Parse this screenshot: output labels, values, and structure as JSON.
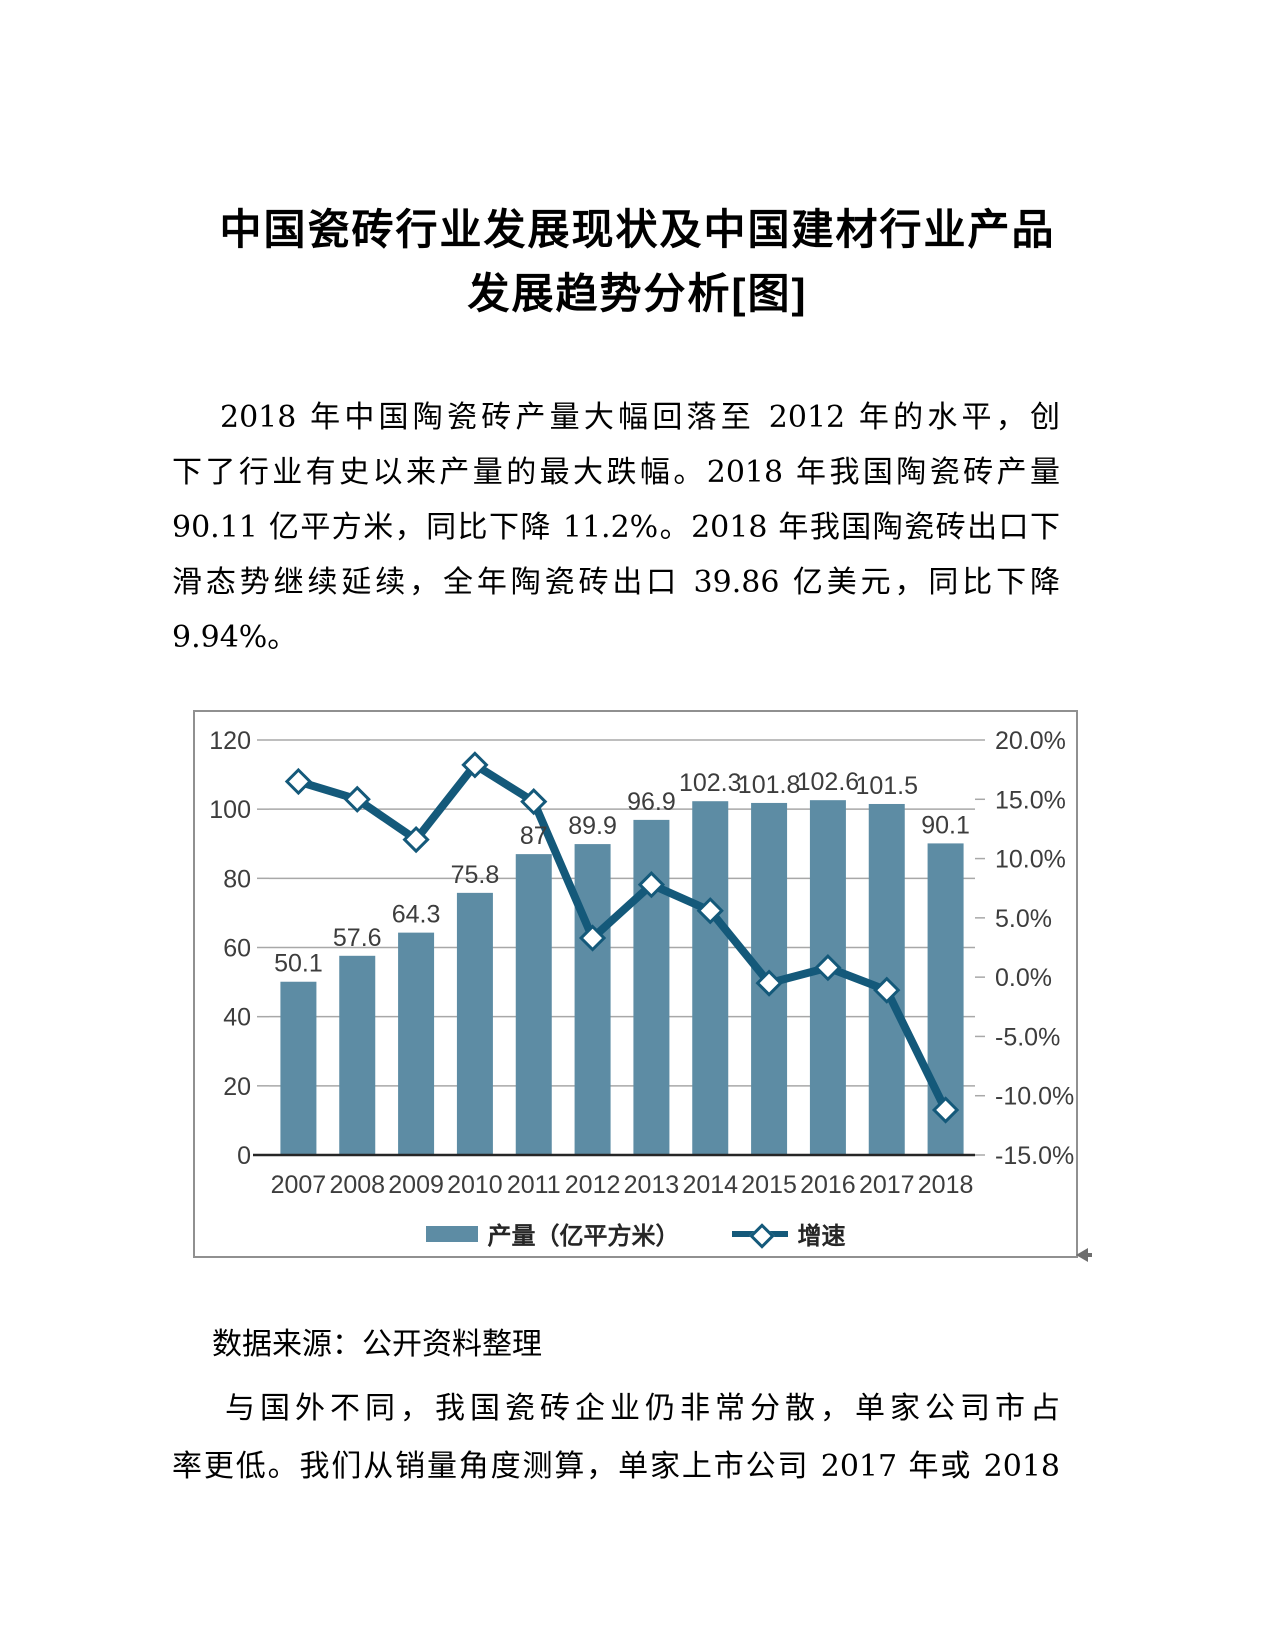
{
  "doc": {
    "title_lines": [
      "中国瓷砖行业发展现状及中国建材行业产品",
      "发展趋势分析[图]"
    ],
    "para1_lines": [
      "2018 年中国陶瓷砖产量大幅回落至 2012 年的水平，创",
      "下了行业有史以来产量的最大跌幅。2018 年我国陶瓷砖产量",
      "90.11 亿平方米，同比下降 11.2%。2018 年我国陶瓷砖出口下",
      "滑态势继续延续，全年陶瓷砖出口 39.86 亿美元，同比下降",
      "9.94%。"
    ],
    "source_note": "数据来源：公开资料整理",
    "para2_lines": [
      "与国外不同，我国瓷砖企业仍非常分散，单家公司市占",
      "率更低。我们从销量角度测算，单家上市公司 2017 年或 2018"
    ]
  },
  "chart_data": {
    "type": "bar",
    "title": "",
    "categories": [
      "2007",
      "2008",
      "2009",
      "2010",
      "2011",
      "2012",
      "2013",
      "2014",
      "2015",
      "2016",
      "2017",
      "2018"
    ],
    "series": [
      {
        "name": "产量（亿平方米）",
        "kind": "bar",
        "axis": "left",
        "color": "#5d8ca4",
        "values": [
          50.1,
          57.6,
          64.3,
          75.8,
          87,
          89.9,
          96.9,
          102.3,
          101.8,
          102.6,
          101.5,
          90.1
        ],
        "labels": [
          "50.1",
          "57.6",
          "64.3",
          "75.8",
          "87",
          "89.9",
          "96.9",
          "102.3",
          "101.8",
          "102.6",
          "101.5",
          "90.1"
        ]
      },
      {
        "name": "增速",
        "kind": "line",
        "axis": "right",
        "color": "#14597a",
        "marker": "diamond",
        "values": [
          16.5,
          15.0,
          11.6,
          17.9,
          14.8,
          3.3,
          7.8,
          5.6,
          -0.5,
          0.8,
          -1.1,
          -11.2
        ]
      }
    ],
    "left_axis": {
      "min": 0,
      "max": 120,
      "step": 20,
      "tick_labels": [
        "0",
        "20",
        "40",
        "60",
        "80",
        "100",
        "120"
      ]
    },
    "right_axis": {
      "min": -15,
      "max": 20,
      "step": 5,
      "tick_labels": [
        "20.0%",
        "15.0%",
        "10.0%",
        "5.0%",
        "0.0%",
        "-5.0%",
        "-10.0%",
        "-15.0%"
      ]
    },
    "grid": true,
    "legend_position": "bottom",
    "colors": {
      "grid": "#a8a8a8",
      "axis_line": "#262626",
      "tick_text": "#3d3d3d",
      "bar_label": "#3d3d3d",
      "border": "#909090"
    }
  }
}
